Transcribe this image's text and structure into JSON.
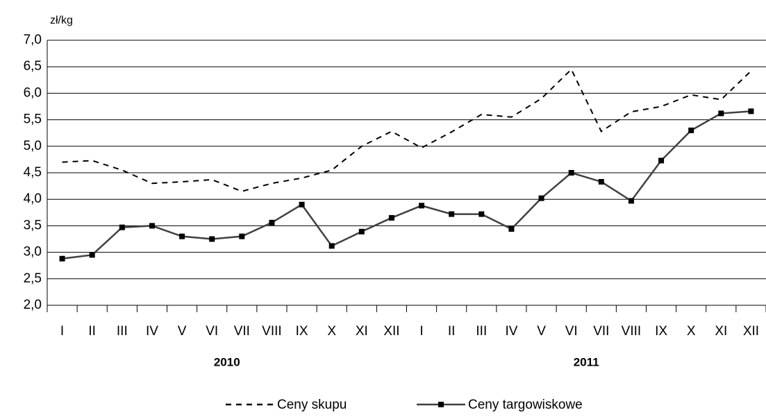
{
  "chart_data": {
    "type": "line",
    "y_label": "zł/kg",
    "categories": [
      "I",
      "II",
      "III",
      "IV",
      "V",
      "VI",
      "VII",
      "VIII",
      "IX",
      "X",
      "XI",
      "XII",
      "I",
      "II",
      "III",
      "IV",
      "V",
      "VI",
      "VII",
      "VIII",
      "IX",
      "X",
      "XI",
      "XII"
    ],
    "groups": [
      "2010",
      "2011"
    ],
    "series": [
      {
        "name": "Ceny skupu",
        "color": "#000000",
        "style": "dashed",
        "values": [
          4.7,
          4.73,
          4.55,
          4.3,
          4.33,
          4.37,
          4.15,
          4.3,
          4.4,
          4.55,
          5.0,
          5.28,
          4.97,
          5.27,
          5.6,
          5.55,
          5.9,
          6.45,
          5.28,
          5.65,
          5.75,
          5.97,
          5.88,
          6.42
        ]
      },
      {
        "name": "Ceny targowiskowe",
        "color": "#404040",
        "style": "solid",
        "marker": "square",
        "values": [
          2.88,
          2.95,
          3.47,
          3.5,
          3.3,
          3.25,
          3.3,
          3.56,
          3.9,
          3.12,
          3.39,
          3.65,
          3.88,
          3.72,
          3.72,
          3.44,
          4.02,
          4.5,
          4.33,
          3.97,
          4.73,
          5.3,
          5.62,
          5.66
        ]
      }
    ],
    "ylim": [
      2,
      7
    ],
    "yticks": [
      {
        "value": 2,
        "label": "2,0"
      },
      {
        "value": 2.5,
        "label": "2,5"
      },
      {
        "value": 3,
        "label": "3,0"
      },
      {
        "value": 3.5,
        "label": "3,5"
      },
      {
        "value": 4,
        "label": "4,0"
      },
      {
        "value": 4.5,
        "label": "4,5"
      },
      {
        "value": 5,
        "label": "5,0"
      },
      {
        "value": 5.5,
        "label": "5,5"
      },
      {
        "value": 6,
        "label": "6,0"
      },
      {
        "value": 6.5,
        "label": "6,5"
      },
      {
        "value": 7,
        "label": "7,0"
      }
    ],
    "grid": true,
    "legend": "bottom"
  }
}
